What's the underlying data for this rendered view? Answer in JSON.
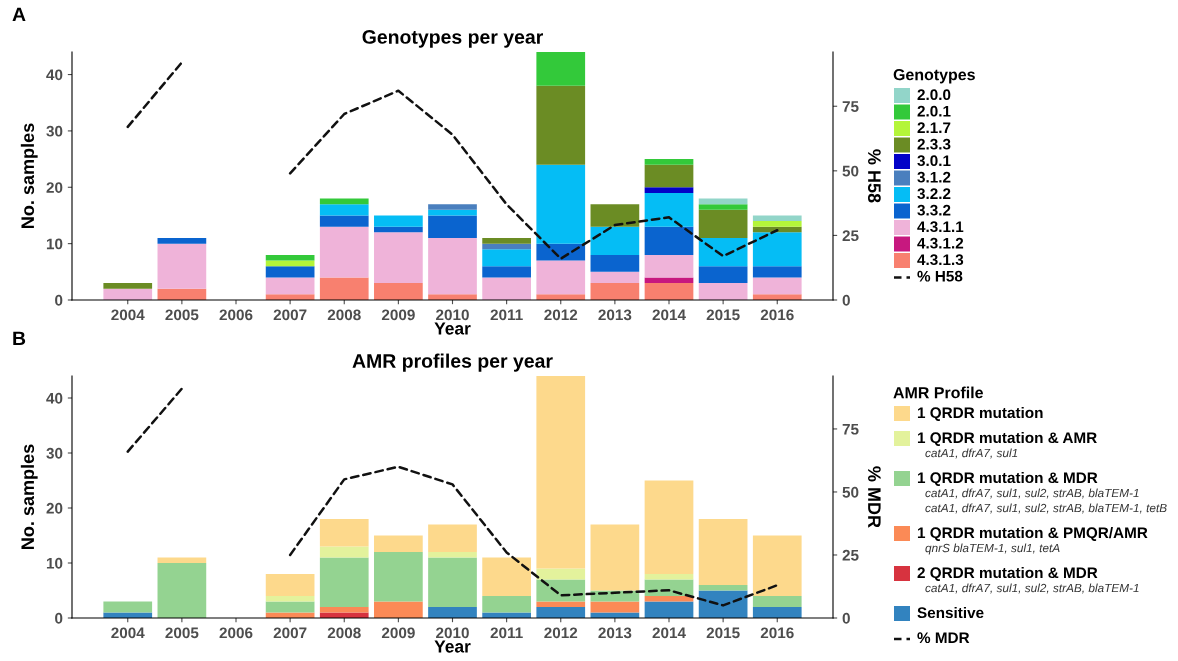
{
  "chart_data": [
    {
      "type": "bar",
      "title": "Genotypes per year",
      "xlabel": "Year",
      "ylabel": "No. samples",
      "y2label": "% H58",
      "legend_title": "Genotypes",
      "annotations": [
        "A"
      ],
      "categories": [
        "2004",
        "2005",
        "2006",
        "2007",
        "2008",
        "2009",
        "2010",
        "2011",
        "2012",
        "2013",
        "2014",
        "2015",
        "2016"
      ],
      "stacked": true,
      "legend": "right",
      "ylim": [
        0,
        44
      ],
      "yticks": [
        0,
        10,
        20,
        30,
        40
      ],
      "y2lim": [
        0,
        96
      ],
      "y2ticks": [
        0,
        25,
        50,
        75
      ],
      "series": [
        {
          "name": "4.3.1.3",
          "color": "#f8806f",
          "values": [
            0,
            2,
            0,
            1,
            4,
            3,
            1,
            0,
            1,
            3,
            3,
            0,
            1
          ]
        },
        {
          "name": "4.3.1.2",
          "color": "#c7187f",
          "values": [
            0,
            0,
            0,
            0,
            0,
            0,
            0,
            0,
            0,
            0,
            1,
            0,
            0
          ]
        },
        {
          "name": "4.3.1.1",
          "color": "#efb3d9",
          "values": [
            2,
            8,
            0,
            3,
            9,
            9,
            10,
            4,
            6,
            2,
            4,
            3,
            3
          ]
        },
        {
          "name": "3.3.2",
          "color": "#0a64cf",
          "values": [
            0,
            1,
            0,
            2,
            2,
            1,
            4,
            2,
            3,
            3,
            5,
            3,
            2
          ]
        },
        {
          "name": "3.2.2",
          "color": "#05bdf5",
          "values": [
            0,
            0,
            0,
            0,
            2,
            2,
            1,
            3,
            14,
            5,
            6,
            5,
            6
          ]
        },
        {
          "name": "3.1.2",
          "color": "#4a7fbe",
          "values": [
            0,
            0,
            0,
            0,
            0,
            0,
            1,
            1,
            0,
            0,
            0,
            0,
            0
          ]
        },
        {
          "name": "3.0.1",
          "color": "#0202c8",
          "values": [
            0,
            0,
            0,
            0,
            0,
            0,
            0,
            0,
            0,
            0,
            1,
            0,
            0
          ]
        },
        {
          "name": "2.3.3",
          "color": "#6b8c24",
          "values": [
            1,
            0,
            0,
            0,
            0,
            0,
            0,
            1,
            14,
            4,
            4,
            5,
            1
          ]
        },
        {
          "name": "2.1.7",
          "color": "#b4f53a",
          "values": [
            0,
            0,
            0,
            1,
            0,
            0,
            0,
            0,
            0,
            0,
            0,
            0,
            1
          ]
        },
        {
          "name": "2.0.1",
          "color": "#33c93a",
          "values": [
            0,
            0,
            0,
            1,
            1,
            0,
            0,
            0,
            6,
            0,
            1,
            1,
            0
          ]
        },
        {
          "name": "2.0.0",
          "color": "#92d5c9",
          "values": [
            0,
            0,
            0,
            0,
            0,
            0,
            0,
            0,
            0,
            0,
            0,
            1,
            1
          ]
        },
        {
          "name": "% H58",
          "type": "line",
          "axis": "y2",
          "line_style": "dashed",
          "color": "#111111",
          "values": [
            67,
            92,
            null,
            49,
            72,
            81,
            64,
            37,
            16,
            29,
            32,
            17,
            27
          ]
        }
      ]
    },
    {
      "type": "bar",
      "title": "AMR profiles per year",
      "xlabel": "Year",
      "ylabel": "No. samples",
      "y2label": "% MDR",
      "legend_title": "AMR Profile",
      "annotations": [
        "B"
      ],
      "categories": [
        "2004",
        "2005",
        "2006",
        "2007",
        "2008",
        "2009",
        "2010",
        "2011",
        "2012",
        "2013",
        "2014",
        "2015",
        "2016"
      ],
      "stacked": true,
      "legend": "right",
      "ylim": [
        0,
        44
      ],
      "yticks": [
        0,
        10,
        20,
        30,
        40
      ],
      "y2lim": [
        0,
        96
      ],
      "y2ticks": [
        0,
        25,
        50,
        75
      ],
      "series": [
        {
          "name": "Sensitive",
          "color": "#3283bf",
          "values": [
            1,
            0,
            0,
            0,
            0,
            0,
            2,
            1,
            2,
            1,
            3,
            5,
            2
          ]
        },
        {
          "name": "2 QRDR mutation & MDR\ncatA1, dfrA7, sul1, sul2, strAB, blaTEM-1",
          "color": "#d7333f",
          "values": [
            0,
            0,
            0,
            0,
            1,
            0,
            0,
            0,
            0,
            0,
            0,
            0,
            0
          ]
        },
        {
          "name": "1 QRDR mutation & PMQR/AMR\nqnrS blaTEM-1, sul1, tetA",
          "color": "#fb8a56",
          "values": [
            0,
            0,
            0,
            1,
            1,
            3,
            0,
            0,
            1,
            2,
            1,
            0,
            0
          ]
        },
        {
          "name": "1 QRDR mutation & MDR\ncatA1, dfrA7, sul1, sul2, strAB, blaTEM-1\ncatA1, dfrA7, sul1, sul2, strAB, blaTEM-1, tetB",
          "color": "#94d391",
          "values": [
            2,
            10,
            0,
            2,
            9,
            9,
            9,
            3,
            4,
            2,
            3,
            1,
            2
          ]
        },
        {
          "name": "1 QRDR mutation & AMR\ncatA1, dfrA7, sul1",
          "color": "#e3f29c",
          "values": [
            0,
            0,
            0,
            1,
            2,
            0,
            1,
            0,
            2,
            0,
            1,
            0,
            0
          ]
        },
        {
          "name": "1 QRDR mutation",
          "color": "#fdd98c",
          "values": [
            0,
            1,
            0,
            4,
            5,
            3,
            5,
            7,
            35,
            12,
            17,
            12,
            11
          ]
        },
        {
          "name": "% MDR",
          "type": "line",
          "axis": "y2",
          "line_style": "dashed",
          "color": "#111111",
          "values": [
            66,
            91,
            null,
            25,
            55,
            60,
            53,
            26,
            9,
            10,
            11,
            5,
            13
          ]
        }
      ]
    }
  ]
}
